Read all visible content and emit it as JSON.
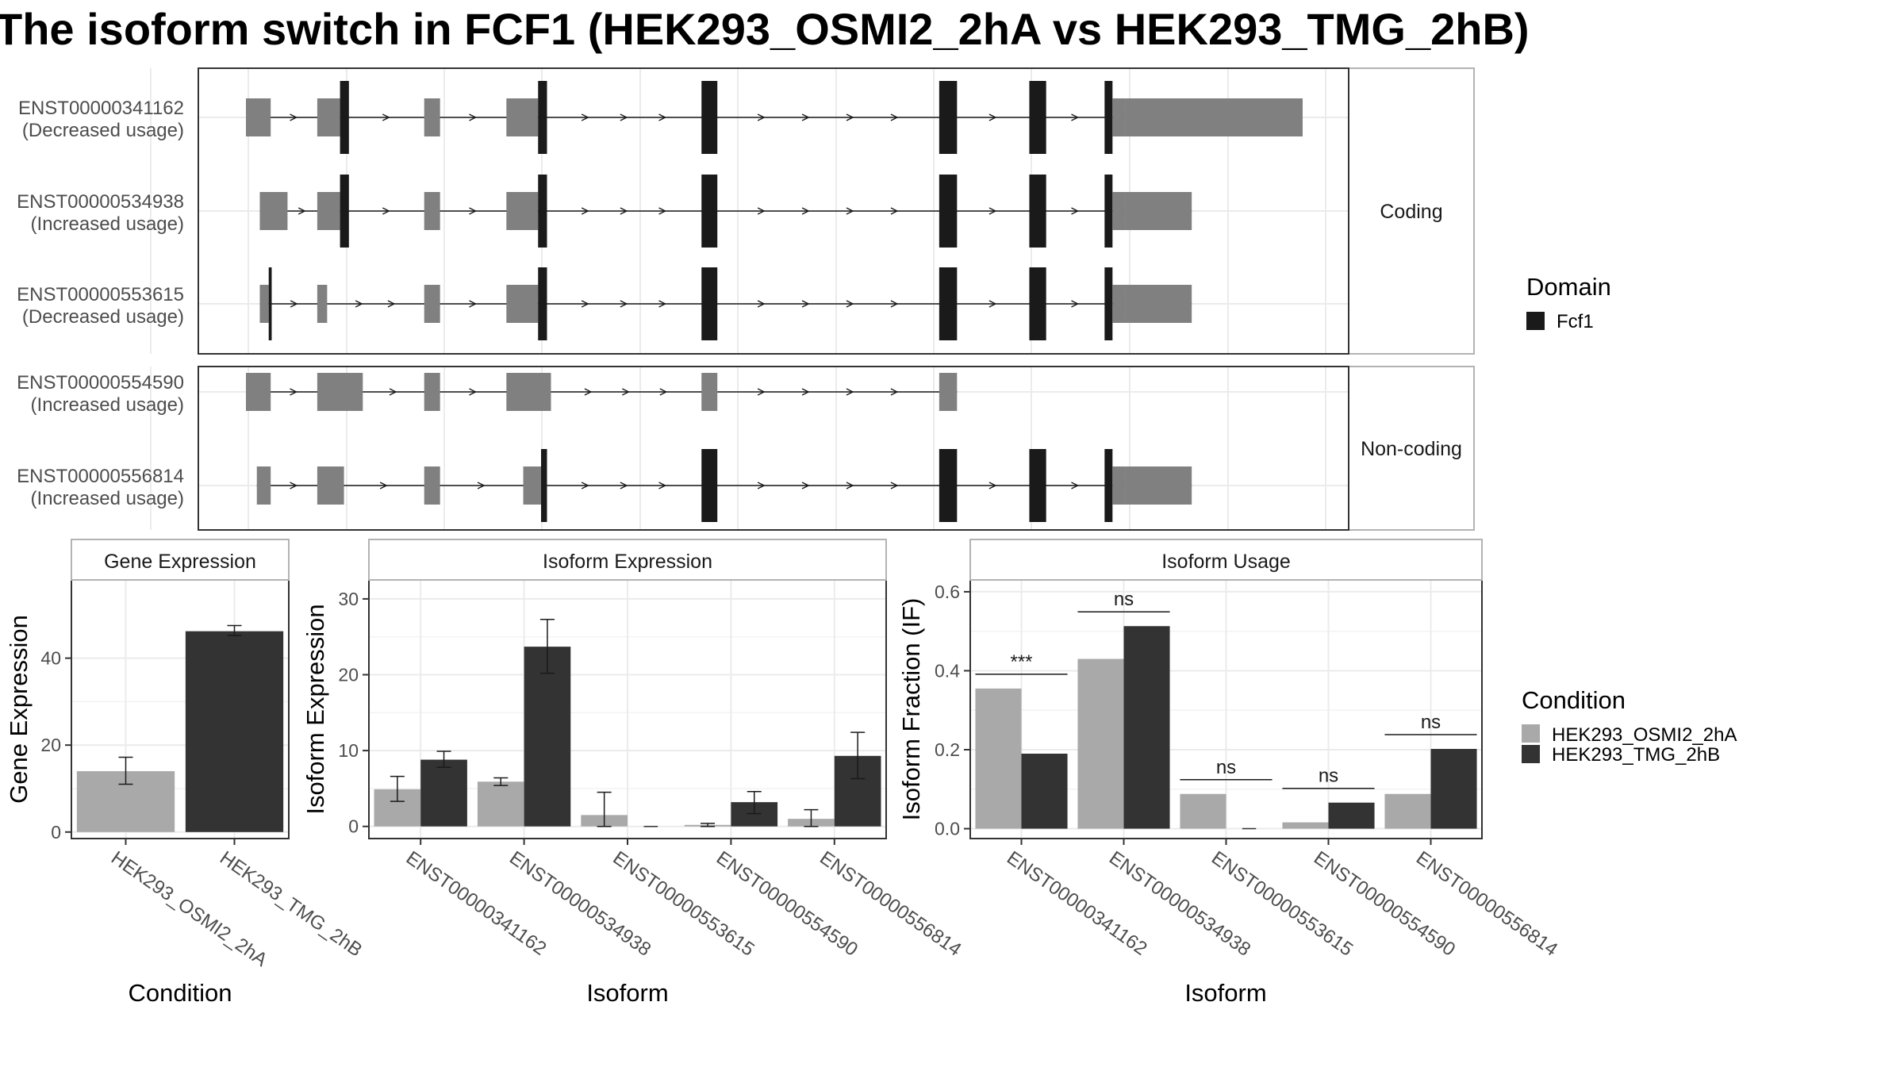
{
  "title": "The isoform switch in FCF1 (HEK293_OSMI2_2hA vs HEK293_TMG_2hB)",
  "colors": {
    "utr": "#808080",
    "domain": "#1a1a1a",
    "cond1": "#a9a9a9",
    "cond2": "#333333",
    "grid": "#ebebeb",
    "panel_border": "#333333",
    "strip_border": "#b3b3b3"
  },
  "transcript_panels": [
    {
      "label": "Coding",
      "transcripts": [
        {
          "id": "ENST00000341162",
          "usage": "(Decreased usage)",
          "exons": [
            [
              0.0,
              2.5,
              "u"
            ],
            [
              7.2,
              9.5,
              "u"
            ],
            [
              9.5,
              10.4,
              "d"
            ],
            [
              18.0,
              19.6,
              "u"
            ],
            [
              26.3,
              29.5,
              "u"
            ],
            [
              29.5,
              30.4,
              "d"
            ],
            [
              46.0,
              47.6,
              "d"
            ],
            [
              70.0,
              71.8,
              "d"
            ],
            [
              79.1,
              80.8,
              "d"
            ],
            [
              86.7,
              87.5,
              "d"
            ],
            [
              87.5,
              88.8,
              "u"
            ],
            [
              88.8,
              106.7,
              "u"
            ]
          ]
        },
        {
          "id": "ENST00000534938",
          "usage": "(Increased usage)",
          "exons": [
            [
              1.4,
              4.2,
              "u"
            ],
            [
              7.2,
              9.5,
              "u"
            ],
            [
              9.5,
              10.4,
              "d"
            ],
            [
              18.0,
              19.6,
              "u"
            ],
            [
              26.3,
              29.5,
              "u"
            ],
            [
              29.5,
              30.4,
              "d"
            ],
            [
              46.0,
              47.6,
              "d"
            ],
            [
              70.0,
              71.8,
              "d"
            ],
            [
              79.1,
              80.8,
              "d"
            ],
            [
              86.7,
              87.5,
              "d"
            ],
            [
              87.5,
              88.8,
              "u"
            ],
            [
              88.8,
              95.5,
              "u"
            ]
          ]
        },
        {
          "id": "ENST00000553615",
          "usage": "(Decreased usage)",
          "exons": [
            [
              1.4,
              2.3,
              "u"
            ],
            [
              2.3,
              2.6,
              "d"
            ],
            [
              7.2,
              8.2,
              "u"
            ],
            [
              18.0,
              19.6,
              "u"
            ],
            [
              26.3,
              29.5,
              "u"
            ],
            [
              29.5,
              30.4,
              "d"
            ],
            [
              46.0,
              47.6,
              "d"
            ],
            [
              70.0,
              71.8,
              "d"
            ],
            [
              79.1,
              80.8,
              "d"
            ],
            [
              86.7,
              87.5,
              "d"
            ],
            [
              87.5,
              88.8,
              "u"
            ],
            [
              88.8,
              95.5,
              "u"
            ]
          ]
        }
      ]
    },
    {
      "label": "Non-coding",
      "transcripts": [
        {
          "id": "ENST00000554590",
          "usage": "(Increased usage)",
          "exons": [
            [
              0.0,
              2.5,
              "u"
            ],
            [
              7.2,
              11.8,
              "u"
            ],
            [
              18.0,
              19.6,
              "u"
            ],
            [
              26.3,
              30.8,
              "u"
            ],
            [
              46.0,
              47.6,
              "u"
            ],
            [
              70.0,
              71.8,
              "u"
            ]
          ]
        },
        {
          "id": "ENST00000556814",
          "usage": "(Increased usage)",
          "exons": [
            [
              1.1,
              2.5,
              "u"
            ],
            [
              7.2,
              9.9,
              "u"
            ],
            [
              18.0,
              19.6,
              "u"
            ],
            [
              28.0,
              29.8,
              "u"
            ],
            [
              29.8,
              30.4,
              "d"
            ],
            [
              46.0,
              47.6,
              "d"
            ],
            [
              70.0,
              71.8,
              "d"
            ],
            [
              79.1,
              80.8,
              "d"
            ],
            [
              86.7,
              87.5,
              "d"
            ],
            [
              87.5,
              88.8,
              "u"
            ],
            [
              88.8,
              95.5,
              "u"
            ]
          ]
        }
      ]
    }
  ],
  "domain_legend": {
    "title": "Domain",
    "items": [
      "Fcf1"
    ]
  },
  "condition_legend": {
    "title": "Condition",
    "items": [
      "HEK293_OSMI2_2hA",
      "HEK293_TMG_2hB"
    ]
  },
  "chart_data": [
    {
      "type": "bar",
      "title": "Gene Expression",
      "xlabel": "Condition",
      "ylabel": "Gene Expression",
      "categories": [
        "HEK293_OSMI2_2hA",
        "HEK293_TMG_2hB"
      ],
      "values": [
        14.0,
        46.2
      ],
      "errors": [
        [
          11.0,
          17.2
        ],
        [
          45.2,
          47.5
        ]
      ],
      "ylim": [
        -1.5,
        58
      ],
      "yticks": [
        0,
        20,
        40
      ]
    },
    {
      "type": "bar",
      "title": "Isoform Expression",
      "xlabel": "Isoform",
      "ylabel": "Isoform Expression",
      "categories": [
        "ENST00000341162",
        "ENST00000534938",
        "ENST00000553615",
        "ENST00000554590",
        "ENST00000556814"
      ],
      "series": [
        {
          "name": "HEK293_OSMI2_2hA",
          "values": [
            4.9,
            5.9,
            1.5,
            0.2,
            1.0
          ],
          "errors": [
            [
              3.3,
              6.6
            ],
            [
              5.4,
              6.4
            ],
            [
              0,
              4.5
            ],
            [
              0,
              0.4
            ],
            [
              0,
              2.2
            ]
          ]
        },
        {
          "name": "HEK293_TMG_2hB",
          "values": [
            8.8,
            23.7,
            0.0,
            3.2,
            9.3
          ],
          "errors": [
            [
              7.8,
              9.9
            ],
            [
              20.2,
              27.3
            ],
            [
              0,
              0
            ],
            [
              1.7,
              4.6
            ],
            [
              6.3,
              12.4
            ]
          ]
        }
      ],
      "ylim": [
        -1.6,
        32.5
      ],
      "yticks": [
        0,
        10,
        20,
        30
      ]
    },
    {
      "type": "bar",
      "title": "Isoform Usage",
      "xlabel": "Isoform",
      "ylabel": "Isoform Fraction (IF)",
      "categories": [
        "ENST00000341162",
        "ENST00000534938",
        "ENST00000553615",
        "ENST00000554590",
        "ENST00000556814"
      ],
      "series": [
        {
          "name": "HEK293_OSMI2_2hA",
          "values": [
            0.355,
            0.43,
            0.088,
            0.016,
            0.088
          ]
        },
        {
          "name": "HEK293_TMG_2hB",
          "values": [
            0.19,
            0.513,
            0.0,
            0.066,
            0.202
          ]
        }
      ],
      "significance": [
        "***",
        "ns",
        "ns",
        "ns",
        "ns"
      ],
      "ylim": [
        -0.025,
        0.63
      ],
      "yticks": [
        0.0,
        0.2,
        0.4,
        0.6
      ],
      "ytick_labels": [
        "0.0",
        "0.2",
        "0.4",
        "0.6"
      ]
    }
  ]
}
